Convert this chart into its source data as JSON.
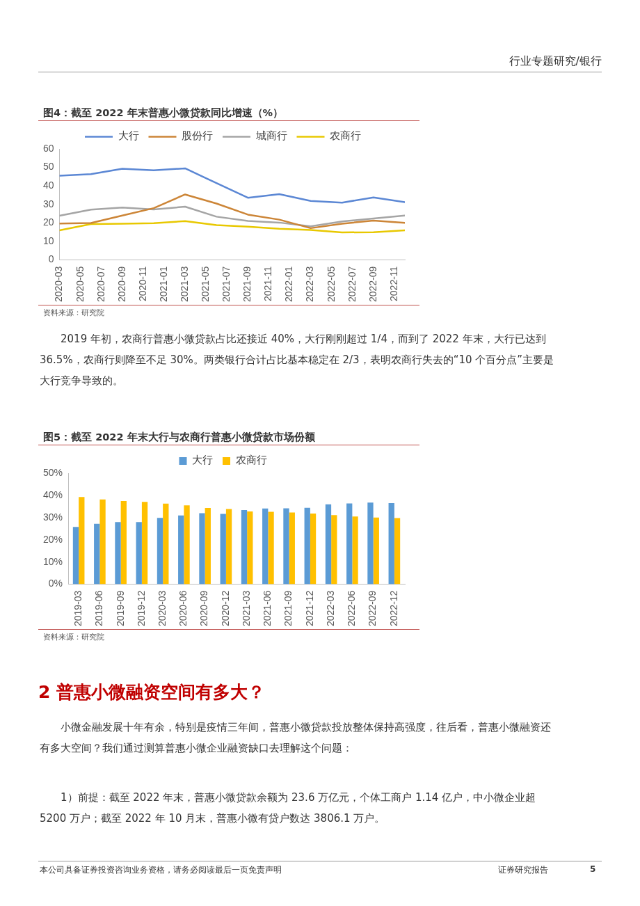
{
  "chart_data": [
    {
      "type": "line",
      "title": "图4：截至 2022 年末普惠小微贷款同比增速（%）",
      "x": [
        "2020-03",
        "2020-06",
        "2020-09",
        "2020-12",
        "2021-03",
        "2021-06",
        "2021-09",
        "2021-12",
        "2022-03",
        "2022-06",
        "2022-09",
        "2022-12"
      ],
      "series": [
        {
          "name": "大行",
          "color": "#5b87d4",
          "values": [
            45.5,
            46.4,
            49.3,
            48.4,
            49.5,
            41.5,
            33.6,
            35.6,
            31.9,
            31.0,
            33.8,
            31.2
          ]
        },
        {
          "name": "股份行",
          "color": "#cc8537",
          "values": [
            19.7,
            20.0,
            24.0,
            28.0,
            35.4,
            30.5,
            24.5,
            21.8,
            17.2,
            19.6,
            21.3,
            20.1
          ]
        },
        {
          "name": "城商行",
          "color": "#a5a5a5",
          "values": [
            23.9,
            27.2,
            28.3,
            27.3,
            28.8,
            23.4,
            21.1,
            20.2,
            18.2,
            20.8,
            22.4,
            24.0
          ]
        },
        {
          "name": "农商行",
          "color": "#e8c800",
          "values": [
            16.0,
            19.4,
            19.6,
            19.9,
            21.0,
            18.8,
            18.0,
            16.9,
            16.2,
            14.9,
            15.0,
            16.0
          ]
        }
      ],
      "xlim": [
        "2020-03",
        "2022-12"
      ],
      "xticks": [
        "2020-03",
        "2020-05",
        "2020-07",
        "2020-09",
        "2020-11",
        "2021-01",
        "2021-03",
        "2021-05",
        "2021-07",
        "2021-09",
        "2021-11",
        "2022-01",
        "2022-03",
        "2022-05",
        "2022-07",
        "2022-09",
        "2022-11"
      ],
      "ylim": [
        0,
        60
      ],
      "yticks": [
        0,
        10,
        20,
        30,
        40,
        50,
        60
      ],
      "grid": false,
      "legend": "top",
      "marker": "none",
      "line_style": "solid",
      "annotations": [
        "行业专题研究/银行",
        "资料来源：研究院",
        "2019 年初，农商行普惠小微贷款占比还接近 40%，大行刚刚超过 1/4，而到了 2022 年末，大行已达到 36.5%，农商行则降至不足 30%。两类银行合计占比基本稳定在 2/3，表明农商行失去的“10 个百分点”主要是大行竞争导致的。"
      ]
    },
    {
      "type": "bar",
      "title": "图5：截至 2022 年末大行与农商行普惠小微贷款市场份额",
      "categories": [
        "2019-03",
        "2019-06",
        "2019-09",
        "2019-12",
        "2020-03",
        "2020-06",
        "2020-09",
        "2020-12",
        "2021-03",
        "2021-06",
        "2021-09",
        "2021-12",
        "2022-03",
        "2022-06",
        "2022-09",
        "2022-12"
      ],
      "series": [
        {
          "name": "大行",
          "color": "#5b9bd5",
          "values": [
            25.8,
            27.2,
            28.0,
            28.0,
            29.9,
            31.0,
            32.0,
            31.7,
            33.4,
            34.1,
            34.2,
            34.4,
            36.0,
            36.4,
            36.8,
            36.5
          ]
        },
        {
          "name": "农商行",
          "color": "#ffc000",
          "values": [
            39.3,
            38.2,
            37.5,
            37.1,
            36.3,
            35.5,
            34.3,
            33.9,
            32.8,
            32.6,
            32.3,
            31.8,
            31.1,
            30.5,
            30.0,
            29.8
          ]
        }
      ],
      "ylim": [
        0,
        50
      ],
      "yticks": [
        {
          "value": 0,
          "label": "0%"
        },
        {
          "value": 10,
          "label": "10%"
        },
        {
          "value": 20,
          "label": "20%"
        },
        {
          "value": 30,
          "label": "30%"
        },
        {
          "value": 40,
          "label": "40%"
        },
        {
          "value": 50,
          "label": "50%"
        }
      ],
      "grid": false,
      "legend": "top",
      "annotations": [
        "资料来源：研究院",
        "2 普惠小微融资空间有多大？",
        "小微金融发展十年有余，特别是疫情三年间，普惠小微贷款投放整体保持高强度，往后看，普惠小微融资还有多大空间？我们通过测算普惠小微企业融资缺口去理解这个问题：",
        "1）前提：截至 2022 年末，普惠小微贷款余额为 23.6 万亿元，个体工商户 1.14 亿户，中小微企业超 5200 万户；截至 2022 年 10 月末，普惠小微有贷户数达 3806.1 万户。",
        "本公司具备证券投资咨询业务资格，请务必阅读最后一页免责声明",
        "证券研究报告",
        "5"
      ]
    }
  ]
}
